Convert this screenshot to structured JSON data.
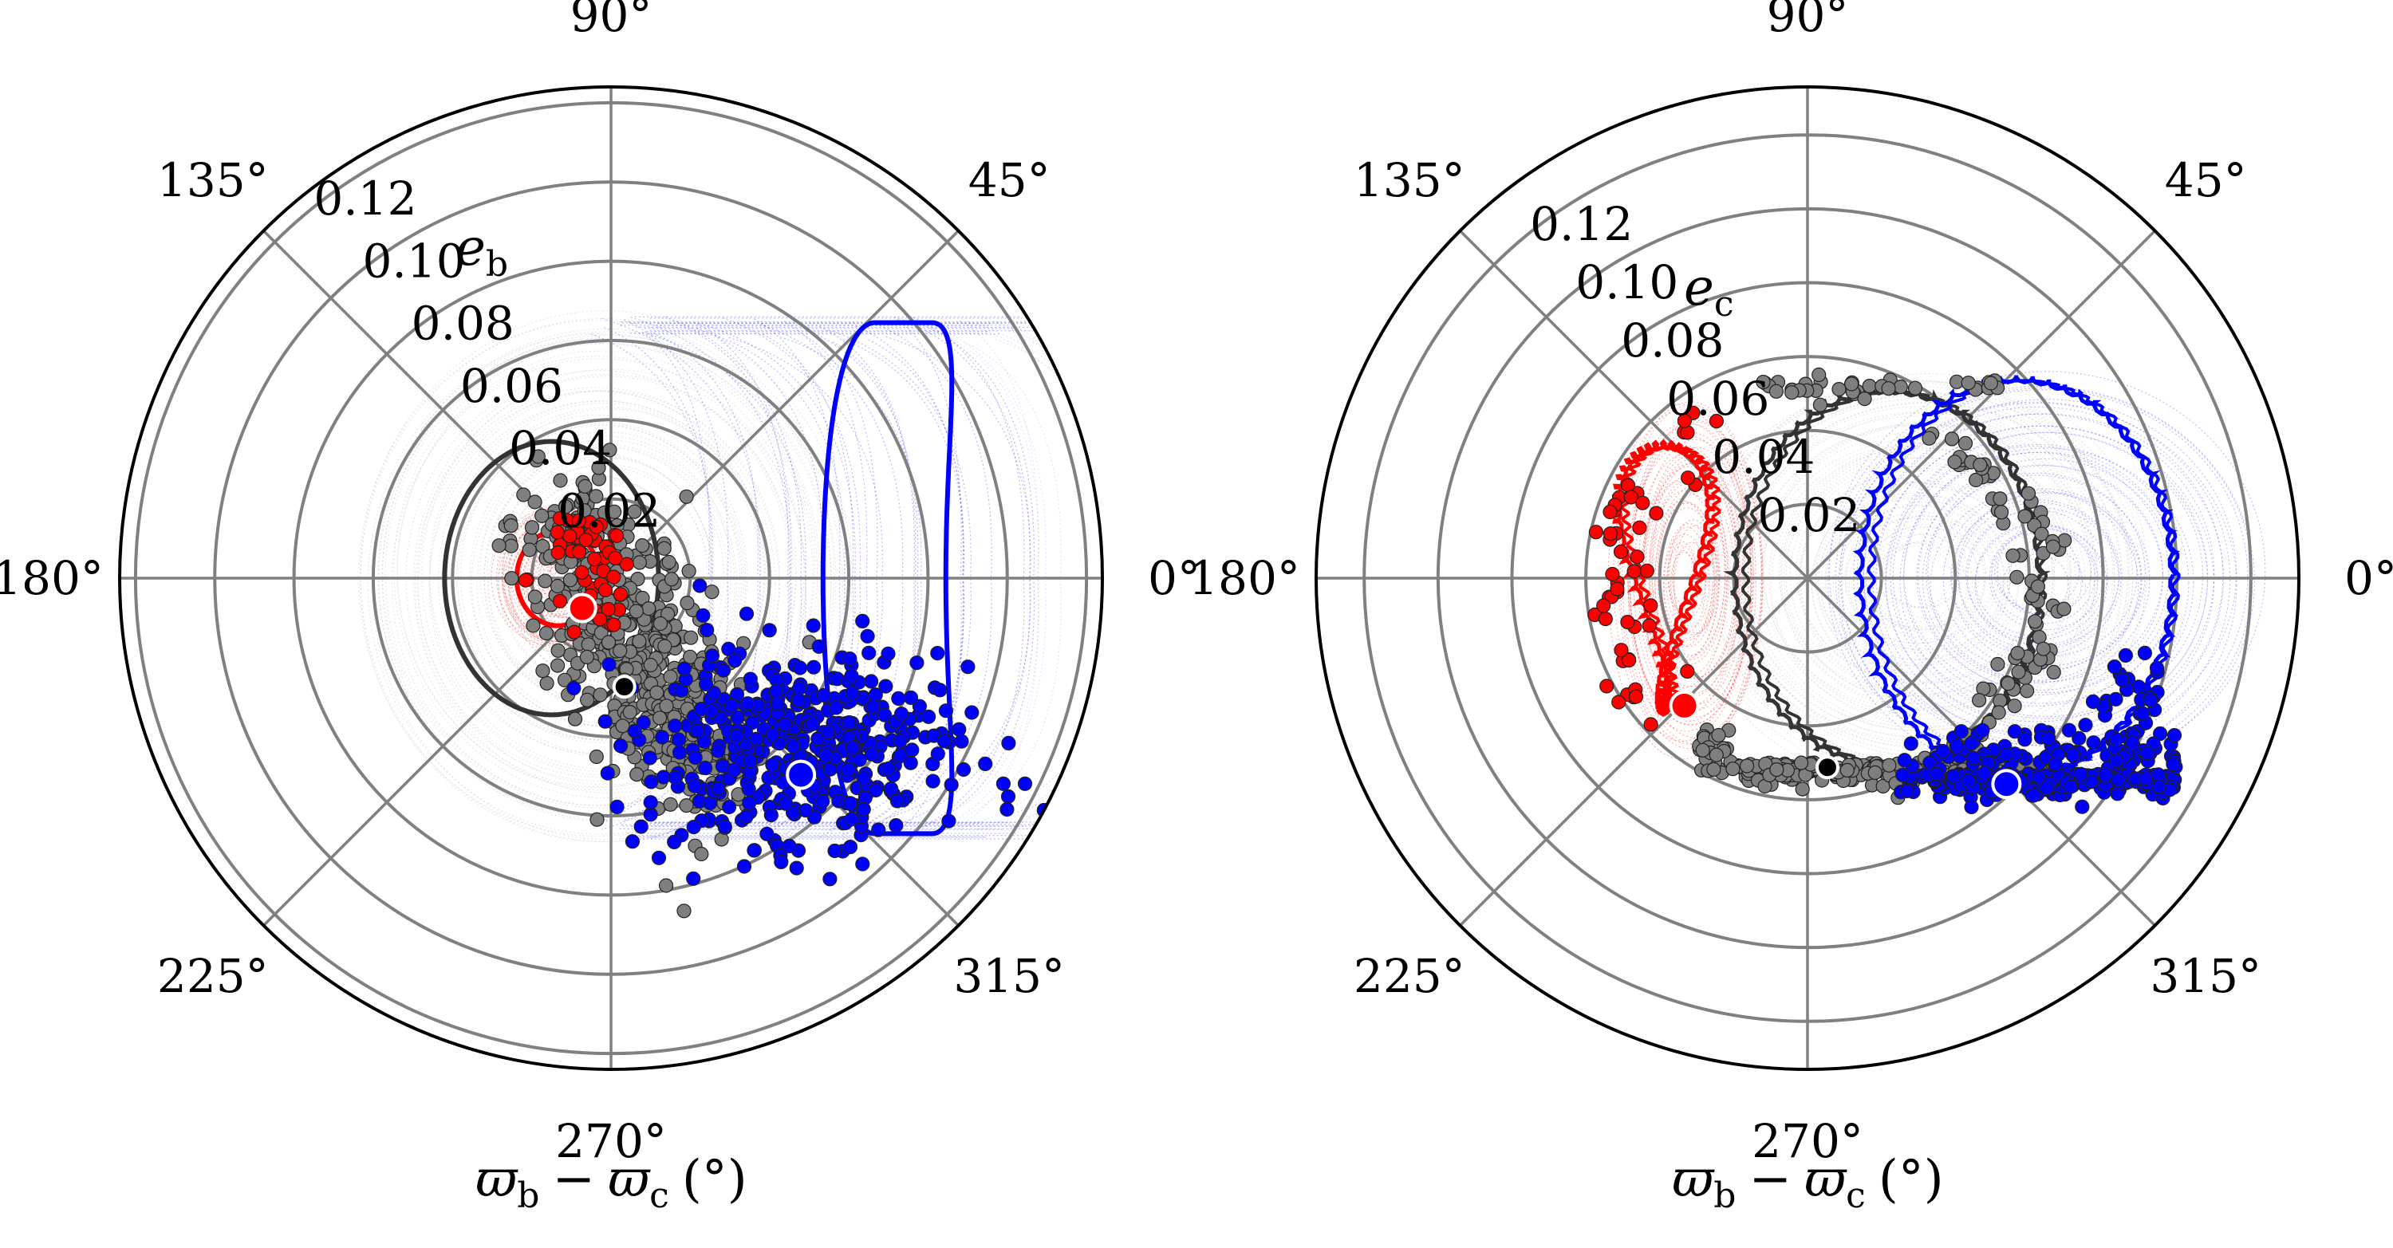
{
  "chart_data": [
    {
      "type": "scatter",
      "projection": "polar",
      "panel": "left",
      "radial_label": "e_b",
      "radial_label_main": "e",
      "radial_label_sub": "b",
      "xlabel_main_1": "ϖ",
      "xlabel_sub_1": "b",
      "xlabel_minus": "−",
      "xlabel_main_2": "ϖ",
      "xlabel_sub_2": "c",
      "xlabel_unit": "(°)",
      "rlim": [
        0,
        0.124
      ],
      "rticks": [
        0.02,
        0.04,
        0.06,
        0.08,
        0.1,
        0.12
      ],
      "rtick_labels": [
        "0.02",
        "0.04",
        "0.06",
        "0.08",
        "0.10",
        "0.12"
      ],
      "theta_ticks_deg": [
        0,
        45,
        90,
        135,
        180,
        225,
        270,
        315
      ],
      "theta_tick_labels": [
        "0°",
        "45°",
        "90°",
        "135°",
        "180°",
        "225°",
        "270°",
        "315°"
      ],
      "grid": true,
      "series": [
        {
          "name": "red",
          "color": "#ff0000",
          "curve_center": [
            -0.0133,
            0.0
          ],
          "curve_semi_axes": [
            0.0105,
            0.012
          ],
          "cloud_center": [
            -0.013,
            0.0
          ],
          "cloud_semi_axes": [
            0.016,
            0.018
          ],
          "marker": {
            "e": 0.0105,
            "theta_deg": 226
          },
          "dots_center": [
            -0.01,
            0.0
          ],
          "dots_spread": [
            0.01,
            0.012
          ],
          "dots_count": 60
        },
        {
          "name": "black",
          "color": "#333333",
          "dot_color": "#7f7f7f",
          "curve_center": [
            -0.015,
            0.0
          ],
          "curve_semi_axes": [
            0.027,
            0.0345
          ],
          "cloud_center": [
            -0.002,
            0.0
          ],
          "cloud_semi_axes": [
            0.062,
            0.067
          ],
          "marker": {
            "e": 0.0276,
            "theta_deg": 277
          },
          "dots_center": [
            0.006,
            -0.018
          ],
          "dots_spread": [
            0.018,
            0.026
          ],
          "dots_count": 520
        },
        {
          "name": "blue",
          "color": "#0000ff",
          "curve_center": [
            0.069,
            0.0
          ],
          "curve_semi_axes": [
            0.0155,
            0.0645
          ],
          "cloud_x_range": [
            0.002,
            0.112
          ],
          "cloud_y_range": [
            -0.066,
            0.066
          ],
          "marker": {
            "e": 0.069,
            "theta_deg": 314
          },
          "dots_center": [
            0.044,
            -0.042
          ],
          "dots_spread": [
            0.017,
            0.012
          ],
          "dots_count": 460
        }
      ]
    },
    {
      "type": "scatter",
      "projection": "polar",
      "panel": "right",
      "radial_label": "e_c",
      "radial_label_main": "e",
      "radial_label_sub": "c",
      "xlabel_main_1": "ϖ",
      "xlabel_sub_1": "b",
      "xlabel_minus": "−",
      "xlabel_main_2": "ϖ",
      "xlabel_sub_2": "c",
      "xlabel_unit": "(°)",
      "rlim": [
        0,
        0.133
      ],
      "rticks": [
        0.02,
        0.04,
        0.06,
        0.08,
        0.1,
        0.12
      ],
      "rtick_labels": [
        "0.02",
        "0.04",
        "0.06",
        "0.08",
        "0.10",
        "0.12"
      ],
      "theta_ticks_deg": [
        0,
        45,
        90,
        135,
        180,
        225,
        270,
        315
      ],
      "theta_tick_labels": [
        "0°",
        "45°",
        "90°",
        "135°",
        "180°",
        "225°",
        "270°",
        "315°"
      ],
      "grid": true,
      "series": [
        {
          "name": "red",
          "color": "#ff0000",
          "curve_center": [
            -0.039,
            0.0
          ],
          "curve_semi_axes": [
            0.0085,
            0.036
          ],
          "cloud_center": [
            -0.032,
            0.0
          ],
          "cloud_semi_axes": [
            0.02,
            0.048
          ],
          "marker": {
            "e": 0.048,
            "theta_deg": 226
          },
          "dots_center": [
            -0.04,
            0.0
          ],
          "dots_spread": [
            0.008,
            0.035
          ],
          "dots_count": 50
        },
        {
          "name": "black",
          "color": "#333333",
          "dot_color": "#7f7f7f",
          "curve_center": [
            0.0215,
            0.0
          ],
          "curve_semi_axes": [
            0.0415,
            0.051
          ],
          "cloud_center": [
            0.031,
            0.0
          ],
          "cloud_semi_axes": [
            0.061,
            0.055
          ],
          "marker": {
            "e": 0.0515,
            "theta_deg": 276
          },
          "dots_center": [
            0.015,
            -0.051
          ],
          "dots_spread": [
            0.03,
            0.003
          ],
          "dots_count": 360
        },
        {
          "name": "blue",
          "color": "#0000ff",
          "curve_center": [
            0.0565,
            0.0
          ],
          "curve_semi_axes": [
            0.0425,
            0.054
          ],
          "cloud_center": [
            0.063,
            0.0
          ],
          "cloud_semi_axes": [
            0.059,
            0.054
          ],
          "marker": {
            "e": 0.0775,
            "theta_deg": 314
          },
          "dots_center": [
            0.068,
            -0.053
          ],
          "dots_spread": [
            0.02,
            0.003
          ],
          "dots_count": 380
        }
      ]
    }
  ]
}
